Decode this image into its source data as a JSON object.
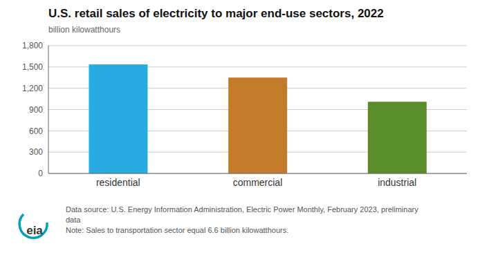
{
  "chart_data": {
    "type": "bar",
    "title": "U.S. retail sales of electricity to major end-use sectors, 2022",
    "ylabel": "billion kilowatthours",
    "categories": [
      "residential",
      "commercial",
      "industrial"
    ],
    "values": [
      1534,
      1349,
      1010
    ],
    "colors": [
      "#29ABE2",
      "#C47A2B",
      "#5B8C2A"
    ],
    "ylim": [
      0,
      1800
    ],
    "yticks": [
      0,
      300,
      600,
      900,
      {
        "value": 1200,
        "label": "1,200"
      },
      {
        "value": 1500,
        "label": "1,500"
      },
      {
        "value": 1800,
        "label": "1,800"
      }
    ],
    "grid": true,
    "annotations": [
      "eia",
      "Data source: U.S. Energy Information Administration, Electric Power Monthly, February 2023, preliminary",
      "data",
      "Note: Sales to transportation sector equal 6.6 billion kilowatthours."
    ]
  }
}
